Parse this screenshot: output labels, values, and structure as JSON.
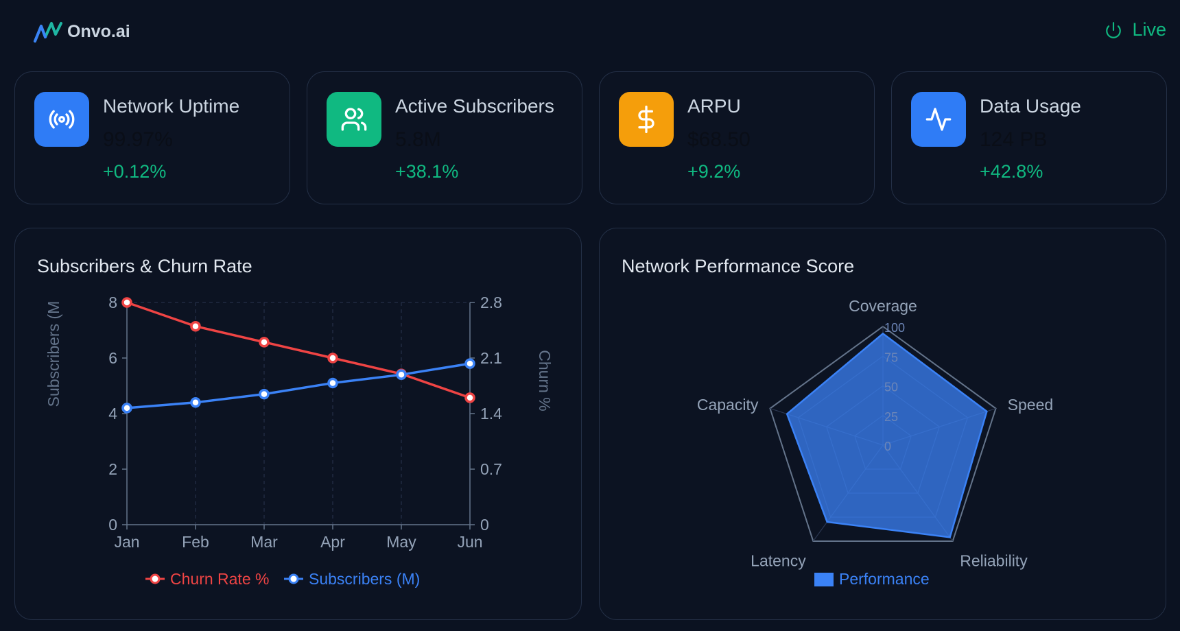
{
  "header": {
    "brand_name": "Onvo.ai",
    "live_label": "Live"
  },
  "kpis": [
    {
      "title": "Network Uptime",
      "value": "99.97%",
      "delta": "+0.12%",
      "icon": "broadcast-icon",
      "color": "#2f7cf6"
    },
    {
      "title": "Active Subscribers",
      "value": "5.8M",
      "delta": "+38.1%",
      "icon": "users-icon",
      "color": "#10b981"
    },
    {
      "title": "ARPU",
      "value": "$68.50",
      "delta": "+9.2%",
      "icon": "dollar-icon",
      "color": "#f59e0b"
    },
    {
      "title": "Data Usage",
      "value": "124 PB",
      "delta": "+42.8%",
      "icon": "activity-icon",
      "color": "#2f7cf6"
    }
  ],
  "line_panel": {
    "title": "Subscribers & Churn Rate"
  },
  "radar_panel": {
    "title": "Network Performance Score"
  },
  "chart_data": [
    {
      "type": "line",
      "title": "Subscribers & Churn Rate",
      "categories": [
        "Jan",
        "Feb",
        "Mar",
        "Apr",
        "May",
        "Jun"
      ],
      "ylabel": "Subscribers (M",
      "y2label": "Churn %",
      "ylim": [
        0,
        8
      ],
      "y2lim": [
        0,
        2.8
      ],
      "yticks": [
        "0",
        "2",
        "4",
        "6",
        "8"
      ],
      "y2ticks": [
        "0",
        "0.7",
        "1.4",
        "2.1",
        "2.8"
      ],
      "grid": true,
      "legend_position": "bottom",
      "series": [
        {
          "name": "Churn Rate %",
          "axis": "right",
          "color": "#ef4444",
          "values": [
            2.8,
            2.5,
            2.3,
            2.1,
            1.9,
            1.6
          ]
        },
        {
          "name": "Subscribers (M)",
          "axis": "left",
          "color": "#3b82f6",
          "values": [
            4.2,
            4.4,
            4.7,
            5.1,
            5.4,
            5.8
          ]
        }
      ]
    },
    {
      "type": "radar",
      "title": "Network Performance Score",
      "categories": [
        "Coverage",
        "Speed",
        "Reliability",
        "Latency",
        "Capacity"
      ],
      "rlim": [
        0,
        100
      ],
      "rticks": [
        "0",
        "25",
        "50",
        "75",
        "100"
      ],
      "legend_position": "bottom",
      "series": [
        {
          "name": "Performance",
          "color": "#3b82f6",
          "values": [
            94,
            92,
            96,
            80,
            85
          ]
        }
      ]
    }
  ]
}
